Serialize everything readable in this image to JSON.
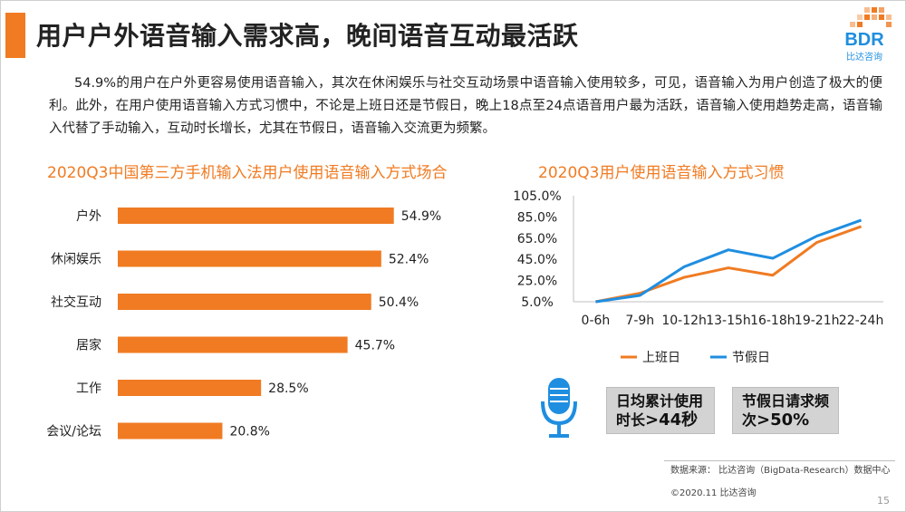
{
  "title": "用户户外语音输入需求高，晚间语音互动最活跃",
  "logo": {
    "text": "BDR",
    "subtext": "比达咨询"
  },
  "paragraph": "54.9%的用户在户外更容易使用语音输入，其次在休闲娱乐与社交互动场景中语音输入使用较多，可见，语音输入为用户创造了极大的便利。此外，在用户使用语音输入方式习惯中，不论是上班日还是节假日，晚上18点至24点语音用户最为活跃，语音输入使用趋势走高，语音输入代替了手动输入，互动时长增长，尤其在节假日，语音输入交流更为频繁。",
  "chart_data": [
    {
      "type": "bar",
      "title": "2020Q3中国第三方手机输入法用户使用语音输入方式场合",
      "orientation": "horizontal",
      "categories": [
        "户外",
        "休闲娱乐",
        "社交互动",
        "居家",
        "工作",
        "会议/论坛"
      ],
      "values": [
        54.9,
        52.4,
        50.4,
        45.7,
        28.5,
        20.8
      ],
      "value_labels": [
        "54.9%",
        "52.4%",
        "50.4%",
        "45.7%",
        "28.5%",
        "20.8%"
      ],
      "xlim": [
        0,
        60
      ],
      "color": "#f07b22"
    },
    {
      "type": "line",
      "title": "2020Q3用户使用语音输入方式习惯",
      "categories": [
        "0-6h",
        "7-9h",
        "10-12h",
        "13-15h",
        "16-18h",
        "19-21h",
        "22-24h"
      ],
      "yticks": [
        "5.0%",
        "25.0%",
        "45.0%",
        "65.0%",
        "85.0%",
        "105.0%"
      ],
      "ylim": [
        5,
        105
      ],
      "grid": false,
      "legend_position": "bottom",
      "series": [
        {
          "name": "上班日",
          "color": "#f07b22",
          "values": [
            5,
            13,
            28,
            37,
            30,
            61,
            76
          ]
        },
        {
          "name": "节假日",
          "color": "#1f8ee0",
          "values": [
            5,
            11,
            38,
            54,
            46,
            67,
            82
          ]
        }
      ]
    }
  ],
  "stats": [
    {
      "line1": "日均累计使用",
      "line2": "时长",
      "value": ">44秒"
    },
    {
      "line1": "节假日请求频",
      "line2": "次",
      "value": ">50%"
    }
  ],
  "source": "数据来源： 比达咨询（BigData-Research）数据中心",
  "copyright": "©2020.11  比达咨询",
  "page_number": "15"
}
